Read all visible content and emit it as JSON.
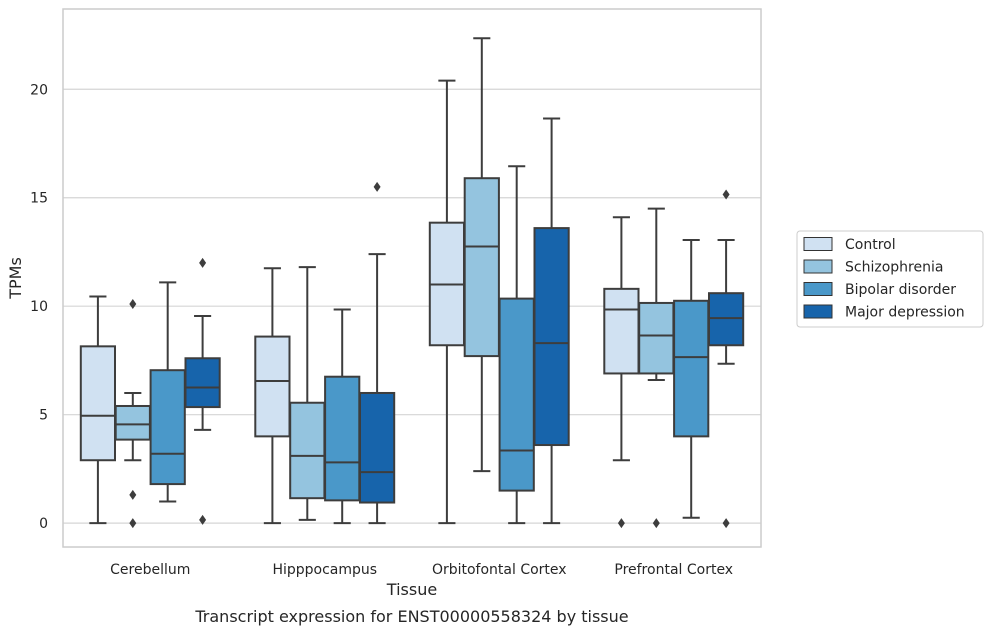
{
  "chart_data": {
    "type": "box",
    "title": "Transcript expression for ENST00000558324 by tissue",
    "xlabel": "Tissue",
    "ylabel": "TPMs",
    "ylim": [
      -1.1,
      23.7
    ],
    "yticks": [
      0,
      5,
      10,
      15,
      20
    ],
    "grid": "horizontal",
    "legend_position": "right",
    "categories": [
      "Cerebellum",
      "Hipppocampus",
      "Orbitofontal Cortex",
      "Prefrontal Cortex"
    ],
    "series": [
      {
        "name": "Control",
        "color": "#d0e1f2",
        "boxes": [
          {
            "min": 0.0,
            "q1": 2.9,
            "median": 4.95,
            "q3": 8.15,
            "max": 10.45,
            "outliers": []
          },
          {
            "min": 0.0,
            "q1": 4.0,
            "median": 6.55,
            "q3": 8.6,
            "max": 11.75,
            "outliers": []
          },
          {
            "min": 0.0,
            "q1": 8.2,
            "median": 11.0,
            "q3": 13.85,
            "max": 20.4,
            "outliers": []
          },
          {
            "min": 2.9,
            "q1": 6.9,
            "median": 9.85,
            "q3": 10.8,
            "max": 14.1,
            "outliers": [
              0.0
            ]
          }
        ]
      },
      {
        "name": "Schizophrenia",
        "color": "#94c4df",
        "boxes": [
          {
            "min": 2.9,
            "q1": 3.85,
            "median": 4.55,
            "q3": 5.4,
            "max": 6.0,
            "outliers": [
              1.3,
              0.0,
              10.1
            ]
          },
          {
            "min": 0.15,
            "q1": 1.15,
            "median": 3.1,
            "q3": 5.55,
            "max": 11.8,
            "outliers": []
          },
          {
            "min": 2.4,
            "q1": 7.7,
            "median": 12.75,
            "q3": 15.9,
            "max": 22.35,
            "outliers": []
          },
          {
            "min": 6.6,
            "q1": 6.9,
            "median": 8.65,
            "q3": 10.15,
            "max": 14.5,
            "outliers": [
              0.0
            ]
          }
        ]
      },
      {
        "name": "Bipolar disorder",
        "color": "#4a98c9",
        "boxes": [
          {
            "min": 1.0,
            "q1": 1.8,
            "median": 3.2,
            "q3": 7.05,
            "max": 11.1,
            "outliers": []
          },
          {
            "min": 0.0,
            "q1": 1.05,
            "median": 2.8,
            "q3": 6.75,
            "max": 9.85,
            "outliers": []
          },
          {
            "min": 0.0,
            "q1": 1.5,
            "median": 3.35,
            "q3": 10.35,
            "max": 16.45,
            "outliers": []
          },
          {
            "min": 0.25,
            "q1": 4.0,
            "median": 7.65,
            "q3": 10.25,
            "max": 13.05,
            "outliers": []
          }
        ]
      },
      {
        "name": "Major depression",
        "color": "#1764ab",
        "boxes": [
          {
            "min": 4.3,
            "q1": 5.35,
            "median": 6.25,
            "q3": 7.6,
            "max": 9.55,
            "outliers": [
              0.15,
              12.0
            ]
          },
          {
            "min": 0.0,
            "q1": 0.95,
            "median": 2.35,
            "q3": 6.0,
            "max": 12.4,
            "outliers": [
              15.5
            ]
          },
          {
            "min": 0.0,
            "q1": 3.6,
            "median": 8.3,
            "q3": 13.6,
            "max": 18.65,
            "outliers": []
          },
          {
            "min": 7.35,
            "q1": 8.2,
            "median": 9.45,
            "q3": 10.6,
            "max": 13.05,
            "outliers": [
              0.0,
              15.15
            ]
          }
        ]
      }
    ]
  }
}
